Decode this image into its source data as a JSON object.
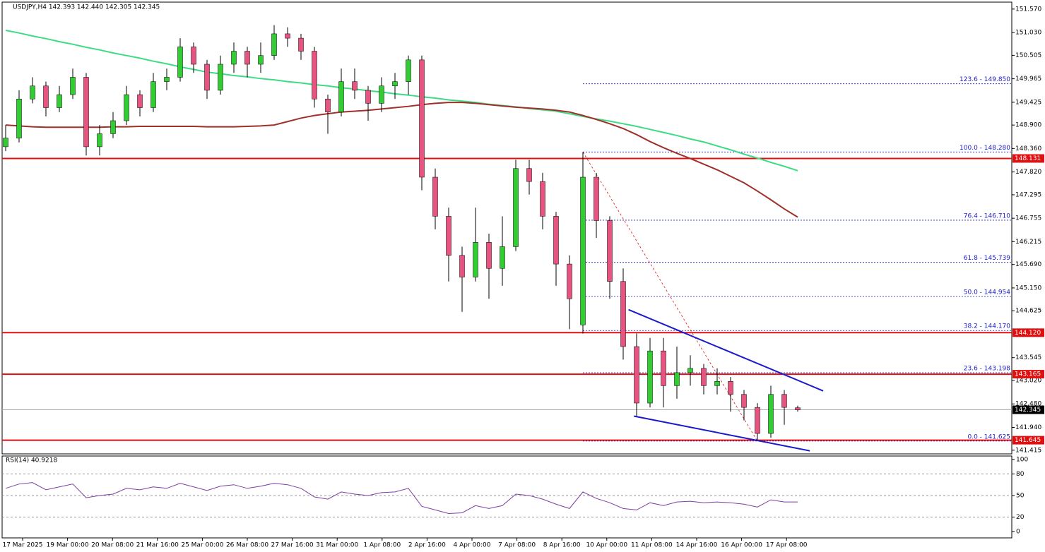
{
  "chart_data": {
    "type": "candlestick",
    "title": "USDJPY,H4  142.393 142.440 142.305 142.345",
    "up_color": "#32cd32",
    "down_color": "#e75480",
    "ylim": [
      141.33,
      151.73
    ],
    "yticks": [
      {
        "value": 151.57,
        "label": "151.570"
      },
      {
        "value": 151.03,
        "label": "151.030"
      },
      {
        "value": 150.505,
        "label": "150.505"
      },
      {
        "value": 149.965,
        "label": "149.965"
      },
      {
        "value": 149.425,
        "label": "149.425"
      },
      {
        "value": 148.9,
        "label": "148.900"
      },
      {
        "value": 148.36,
        "label": "148.360"
      },
      {
        "value": 147.82,
        "label": "147.820"
      },
      {
        "value": 147.295,
        "label": "147.295"
      },
      {
        "value": 146.755,
        "label": "146.755"
      },
      {
        "value": 146.215,
        "label": "146.215"
      },
      {
        "value": 145.69,
        "label": "145.690"
      },
      {
        "value": 145.15,
        "label": "145.150"
      },
      {
        "value": 144.625,
        "label": "144.625"
      },
      {
        "value": 143.545,
        "label": "143.545"
      },
      {
        "value": 143.02,
        "label": "143.020"
      },
      {
        "value": 142.48,
        "label": "142.480"
      },
      {
        "value": 141.94,
        "label": "141.940"
      },
      {
        "value": 141.415,
        "label": "141.415"
      }
    ],
    "xlabels": [
      "17 Mar 2025",
      "19 Mar 00:00",
      "20 Mar 08:00",
      "21 Mar 16:00",
      "25 Mar 00:00",
      "26 Mar 08:00",
      "27 Mar 16:00",
      "31 Mar 00:00",
      "1 Apr 08:00",
      "2 Apr 16:00",
      "4 Apr 00:00",
      "7 Apr 08:00",
      "8 Apr 16:00",
      "10 Apr 00:00",
      "11 Apr 08:00",
      "14 Apr 16:00",
      "16 Apr 00:00",
      "17 Apr 08:00"
    ],
    "candles": [
      [
        148.4,
        148.9,
        148.3,
        148.6
      ],
      [
        148.6,
        149.7,
        148.5,
        149.5
      ],
      [
        149.5,
        150.0,
        149.4,
        149.8
      ],
      [
        149.8,
        149.9,
        149.1,
        149.3
      ],
      [
        149.3,
        149.8,
        149.2,
        149.6
      ],
      [
        149.6,
        150.2,
        149.5,
        150.0
      ],
      [
        150.0,
        150.1,
        148.2,
        148.4
      ],
      [
        148.4,
        148.9,
        148.2,
        148.7
      ],
      [
        148.7,
        149.2,
        148.6,
        149.0
      ],
      [
        149.0,
        149.8,
        148.9,
        149.6
      ],
      [
        149.6,
        149.7,
        149.1,
        149.3
      ],
      [
        149.3,
        150.1,
        149.2,
        149.9
      ],
      [
        149.9,
        150.2,
        149.7,
        150.0
      ],
      [
        150.0,
        150.9,
        149.9,
        150.7
      ],
      [
        150.7,
        150.8,
        150.1,
        150.3
      ],
      [
        150.3,
        150.4,
        149.5,
        149.7
      ],
      [
        149.7,
        150.5,
        149.6,
        150.3
      ],
      [
        150.3,
        150.8,
        150.1,
        150.6
      ],
      [
        150.6,
        150.7,
        150.0,
        150.3
      ],
      [
        150.3,
        150.8,
        150.1,
        150.5
      ],
      [
        150.5,
        151.2,
        150.4,
        151.0
      ],
      [
        151.0,
        151.15,
        150.7,
        150.9
      ],
      [
        150.9,
        151.0,
        150.4,
        150.6
      ],
      [
        150.6,
        150.7,
        149.3,
        149.5
      ],
      [
        149.5,
        149.6,
        148.7,
        149.2
      ],
      [
        149.2,
        150.2,
        149.1,
        149.9
      ],
      [
        149.9,
        150.2,
        149.5,
        149.7
      ],
      [
        149.7,
        149.8,
        149.0,
        149.4
      ],
      [
        149.4,
        150.0,
        149.2,
        149.8
      ],
      [
        149.8,
        150.1,
        149.5,
        149.9
      ],
      [
        149.9,
        150.5,
        149.6,
        150.4
      ],
      [
        150.4,
        150.5,
        147.4,
        147.7
      ],
      [
        147.7,
        147.9,
        146.5,
        146.8
      ],
      [
        146.8,
        147.0,
        145.3,
        145.9
      ],
      [
        145.9,
        146.1,
        144.6,
        145.4
      ],
      [
        145.4,
        147.0,
        145.3,
        146.2
      ],
      [
        146.2,
        146.4,
        144.9,
        145.6
      ],
      [
        145.6,
        146.8,
        145.2,
        146.1
      ],
      [
        146.1,
        148.1,
        146.0,
        147.9
      ],
      [
        147.9,
        148.1,
        147.3,
        147.6
      ],
      [
        147.6,
        147.8,
        146.5,
        146.8
      ],
      [
        146.8,
        146.9,
        145.2,
        145.7
      ],
      [
        145.7,
        145.9,
        144.2,
        144.9
      ],
      [
        144.3,
        148.28,
        144.1,
        147.7
      ],
      [
        147.7,
        147.8,
        146.3,
        146.7
      ],
      [
        146.7,
        146.8,
        144.9,
        145.3
      ],
      [
        145.3,
        145.6,
        143.5,
        143.8
      ],
      [
        143.8,
        144.1,
        142.2,
        142.5
      ],
      [
        142.5,
        144.0,
        142.4,
        143.7
      ],
      [
        143.7,
        144.0,
        142.4,
        142.9
      ],
      [
        142.9,
        143.8,
        142.6,
        143.2
      ],
      [
        143.2,
        143.6,
        142.9,
        143.3
      ],
      [
        143.3,
        143.4,
        142.7,
        142.9
      ],
      [
        142.9,
        143.3,
        142.7,
        143.0
      ],
      [
        143.0,
        143.1,
        142.3,
        142.7
      ],
      [
        142.7,
        142.8,
        142.1,
        142.4
      ],
      [
        142.4,
        142.5,
        141.625,
        141.8
      ],
      [
        141.8,
        142.9,
        141.7,
        142.7
      ],
      [
        142.7,
        142.8,
        142.0,
        142.4
      ],
      [
        142.393,
        142.44,
        142.305,
        142.345
      ]
    ],
    "moving_averages": [
      {
        "color": "#3ddc84",
        "values": [
          151.08,
          151.02,
          150.95,
          150.89,
          150.82,
          150.76,
          150.69,
          150.63,
          150.56,
          150.5,
          150.44,
          150.37,
          150.31,
          150.24,
          150.18,
          150.12,
          150.08,
          150.04,
          150.01,
          149.97,
          149.94,
          149.9,
          149.87,
          149.83,
          149.8,
          149.76,
          149.73,
          149.69,
          149.66,
          149.62,
          149.59,
          149.55,
          149.52,
          149.48,
          149.45,
          149.42,
          149.38,
          149.35,
          149.32,
          149.28,
          149.25,
          149.22,
          149.16,
          149.1,
          149.04,
          148.99,
          148.93,
          148.87,
          148.8,
          148.73,
          148.66,
          148.58,
          148.51,
          148.42,
          148.33,
          148.23,
          148.14,
          148.04,
          147.95,
          147.85
        ]
      },
      {
        "color": "#a0302a",
        "values": [
          148.9,
          148.88,
          148.86,
          148.85,
          148.85,
          148.85,
          148.85,
          148.85,
          148.86,
          148.86,
          148.87,
          148.87,
          148.87,
          148.87,
          148.87,
          148.86,
          148.86,
          148.86,
          148.87,
          148.88,
          148.9,
          148.98,
          149.06,
          149.12,
          149.16,
          149.2,
          149.22,
          149.24,
          149.27,
          149.3,
          149.33,
          149.37,
          149.4,
          149.42,
          149.42,
          149.4,
          149.37,
          149.34,
          149.31,
          149.29,
          149.27,
          149.24,
          149.2,
          149.12,
          149.03,
          148.93,
          148.82,
          148.68,
          148.52,
          148.38,
          148.25,
          148.13,
          148.0,
          147.87,
          147.72,
          147.57,
          147.38,
          147.18,
          146.97,
          146.78
        ]
      }
    ],
    "levels": [
      {
        "value": 148.131,
        "label": "148.131",
        "color": "#e01010"
      },
      {
        "value": 144.12,
        "label": "144.120",
        "color": "#e01010"
      },
      {
        "value": 143.165,
        "label": "143.165",
        "color": "#e01010"
      },
      {
        "value": 141.645,
        "label": "141.645",
        "color": "#e01010"
      },
      {
        "value": 142.345,
        "label": "142.345",
        "color": "#000000"
      }
    ],
    "fibonacci": [
      {
        "value": 149.85,
        "label": "123.6 - 149.850"
      },
      {
        "value": 148.28,
        "label": "100.0 - 148.280"
      },
      {
        "value": 146.71,
        "label": "76.4 - 146.710"
      },
      {
        "value": 145.739,
        "label": "61.8 - 145.739"
      },
      {
        "value": 144.954,
        "label": "50.0 - 144.954"
      },
      {
        "value": 144.17,
        "label": "38.2 - 144.170"
      },
      {
        "value": 143.198,
        "label": "23.6 - 143.198"
      },
      {
        "value": 141.625,
        "label": "0.0 - 141.625"
      }
    ],
    "trendlines": [
      {
        "color": "#1a1acc",
        "x": [
          46.4,
          60.9
        ],
        "values": [
          144.65,
          142.78
        ]
      },
      {
        "color": "#1a1acc",
        "x": [
          46.8,
          59.9
        ],
        "values": [
          142.2,
          141.4
        ]
      }
    ],
    "rsi": {
      "label": "RSI(14) 40.9218",
      "color": "#7b3fa0",
      "ylim": [
        0,
        100
      ],
      "yticks": [
        100,
        80,
        50,
        20,
        0
      ],
      "levels": [
        80,
        50,
        20
      ],
      "values": [
        60,
        66,
        68,
        58,
        62,
        66,
        47,
        50,
        52,
        60,
        58,
        62,
        60,
        67,
        62,
        57,
        63,
        65,
        60,
        63,
        67,
        65,
        60,
        48,
        45,
        55,
        52,
        50,
        54,
        55,
        60,
        35,
        30,
        25,
        26,
        36,
        32,
        36,
        52,
        50,
        45,
        38,
        32,
        55,
        46,
        40,
        32,
        30,
        40,
        36,
        41,
        42,
        40,
        41,
        40,
        38,
        34,
        44,
        41,
        41
      ]
    }
  }
}
